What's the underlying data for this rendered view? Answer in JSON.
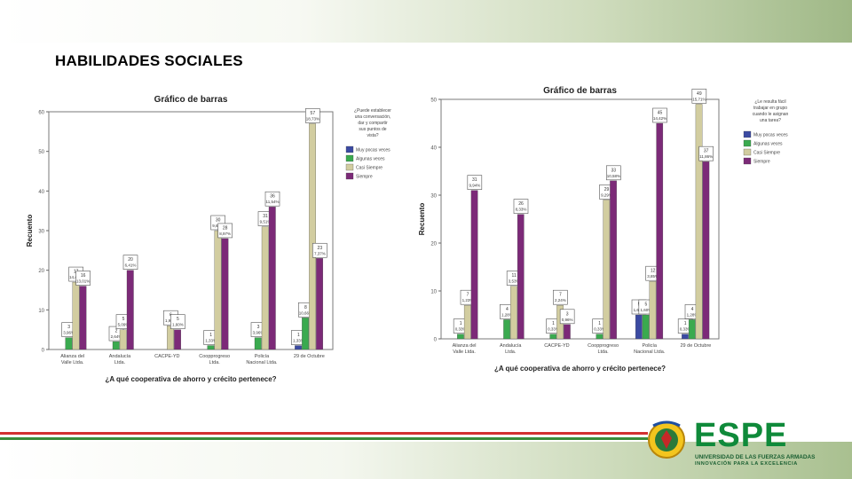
{
  "slide": {
    "title": "HABILIDADES SOCIALES"
  },
  "logo": {
    "name": "ESPE",
    "line1": "UNIVERSIDAD DE LAS FUERZAS ARMADAS",
    "line2": "INNOVACIÓN PARA LA EXCELENCIA"
  },
  "colors": {
    "series": [
      "#3b4aa2",
      "#3aaa4f",
      "#d2cda0",
      "#7c2a78"
    ],
    "band": "#9fb886",
    "stripe_red": "#d23030",
    "stripe_green": "#3a8c3a"
  },
  "chart_data": [
    {
      "type": "bar",
      "title": "Gráfico de barras",
      "xlabel": "¿A qué cooperativa de ahorro y crécito pertenece?",
      "ylabel": "Recuento",
      "ylim": [
        0,
        60
      ],
      "yticks": [
        0,
        10,
        20,
        30,
        40,
        50,
        60
      ],
      "legend_position": "right",
      "legend_title": "¿Puede establecer una conversación, dar y compartir sus puntos de vista?",
      "categories": [
        "Alianza del Valle Ltda.",
        "Andalucía Ltda.",
        "CACPE-YD",
        "Coopprogreso Ltda.",
        "Policía Nacional Ltda.",
        "29 de Octubre"
      ],
      "series": [
        {
          "name": "Muy pocas veces",
          "values": [
            0,
            0,
            0,
            0,
            0,
            1
          ],
          "labels": [
            "",
            "",
            "",
            "",
            "",
            "1\n1,33%"
          ]
        },
        {
          "name": "Algunas veces",
          "values": [
            3,
            2,
            0,
            1,
            3,
            8
          ],
          "labels": [
            "3\n3,96%",
            "2\n2,64%",
            "",
            "1\n1,33%",
            "3\n3,96%",
            "8\n10,66%"
          ]
        },
        {
          "name": "Casi Siempre",
          "values": [
            17,
            5,
            6,
            30,
            31,
            57
          ],
          "labels": [
            "17\n14,41%",
            "5\n5,09%",
            "6\n1,95%",
            "30\n9,62%",
            "31\n9,51%",
            "57\n18,73%"
          ]
        },
        {
          "name": "Siempre",
          "values": [
            16,
            20,
            5,
            28,
            36,
            23
          ],
          "labels": [
            "16\n13,01%",
            "20\n6,41%",
            "5\n1,60%",
            "28\n8,97%",
            "36\n11,54%",
            "23\n7,37%"
          ]
        }
      ]
    },
    {
      "type": "bar",
      "title": "Gráfico de barras",
      "xlabel": "¿A qué cooperativa de ahorro y crécito pertenece?",
      "ylabel": "Recuento",
      "ylim": [
        0,
        50
      ],
      "yticks": [
        0,
        10,
        20,
        30,
        40,
        50
      ],
      "legend_position": "right",
      "legend_title": "¿Le resulta fácil trabajar en grupo cuando le asignan una tarea?",
      "categories": [
        "Alianza del Valle Ltda.",
        "Andalucía Ltda.",
        "CACPE-YD",
        "Coopprogreso Ltda.",
        "Policía Nacional Ltda.",
        "29 de Octubre"
      ],
      "series": [
        {
          "name": "Muy pocas veces",
          "values": [
            0,
            0,
            0,
            0,
            5,
            1
          ],
          "labels": [
            "",
            "",
            "",
            "",
            "5\n1,60%",
            "1\n0,33%"
          ]
        },
        {
          "name": "Algunas veces",
          "values": [
            1,
            4,
            1,
            1,
            5,
            4
          ],
          "labels": [
            "1\n0,33%",
            "4\n1,28%",
            "1\n0,33%",
            "1\n0,33%",
            "5\n1,60%",
            "4\n1,28%"
          ]
        },
        {
          "name": "Casi Siempre",
          "values": [
            7,
            11,
            7,
            29,
            12,
            49
          ],
          "labels": [
            "7\n1,23%",
            "11\n3,53%",
            "7\n2,24%",
            "29\n9,29%",
            "12\n3,85%",
            "49\n15,71%"
          ]
        },
        {
          "name": "Siempre",
          "values": [
            31,
            26,
            3,
            33,
            45,
            37
          ],
          "labels": [
            "31\n9,94%",
            "26\n8,33%",
            "3\n0,96%",
            "33\n10,58%",
            "45\n14,42%",
            "37\n11,86%"
          ]
        }
      ]
    }
  ]
}
